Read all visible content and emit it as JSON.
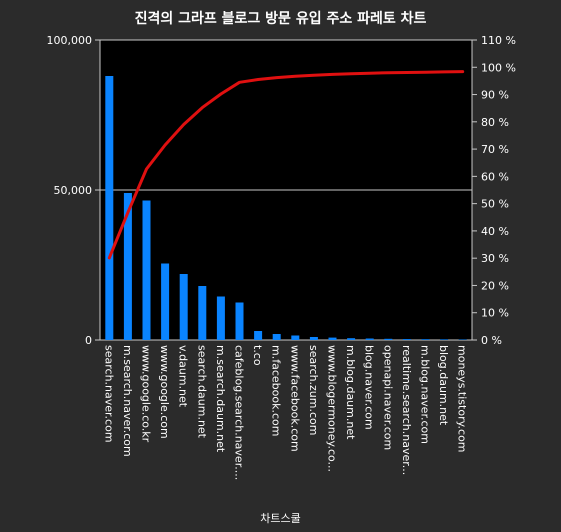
{
  "chart_data": {
    "type": "bar",
    "title": "진격의 그라프 블로그 방문 유입 주소 파레토 차트",
    "xlabel": "차트스쿨",
    "ylabel": "",
    "ylim": [
      0,
      100000
    ],
    "y_ticks": [
      "0",
      "50,000",
      "100,000"
    ],
    "y2lim": [
      0,
      110
    ],
    "y2_ticks": [
      "0 %",
      "10 %",
      "20 %",
      "30 %",
      "40 %",
      "50 %",
      "60 %",
      "70 %",
      "80 %",
      "90 %",
      "100 %",
      "110 %"
    ],
    "grid": "horizontal major lines",
    "legend": "none",
    "categories": [
      "search.naver.com",
      "m.search.naver.com",
      "www.google.co.kr",
      "www.google.com",
      "v.daum.net",
      "search.daum.net",
      "m.search.daum.net",
      "cafeblog.search.naver....",
      "t.co",
      "m.facebook.com",
      "www.facebook.com",
      "search.zum.com",
      "www.blogermoney.co...",
      "m.blog.daum.net",
      "blog.naver.com",
      "openapi.naver.com",
      "realtime.search.naver...",
      "m.blog.naver.com",
      "blog.daum.net",
      "moneys.tistory.com"
    ],
    "series": [
      {
        "values": [
          88000,
          49000,
          46500,
          25500,
          22000,
          18000,
          14500,
          12500,
          3000,
          2000,
          1500,
          1000,
          800,
          600,
          500,
          400,
          300,
          250,
          200,
          150
        ],
        "color": "#0a84ff",
        "axis": "left"
      },
      {
        "values": [
          30.1,
          46.8,
          62.7,
          71.5,
          79.0,
          85.2,
          90.2,
          94.5,
          95.5,
          96.2,
          96.7,
          97.1,
          97.4,
          97.6,
          97.8,
          98.0,
          98.1,
          98.2,
          98.3,
          98.4
        ],
        "color": "#e01010",
        "axis": "right",
        "style": "line",
        "unit": "%"
      }
    ],
    "colors": {
      "background": "#2b2b2b",
      "plot_background": "#000000",
      "text": "#ffffff",
      "grid": "#c8c8c8"
    }
  }
}
